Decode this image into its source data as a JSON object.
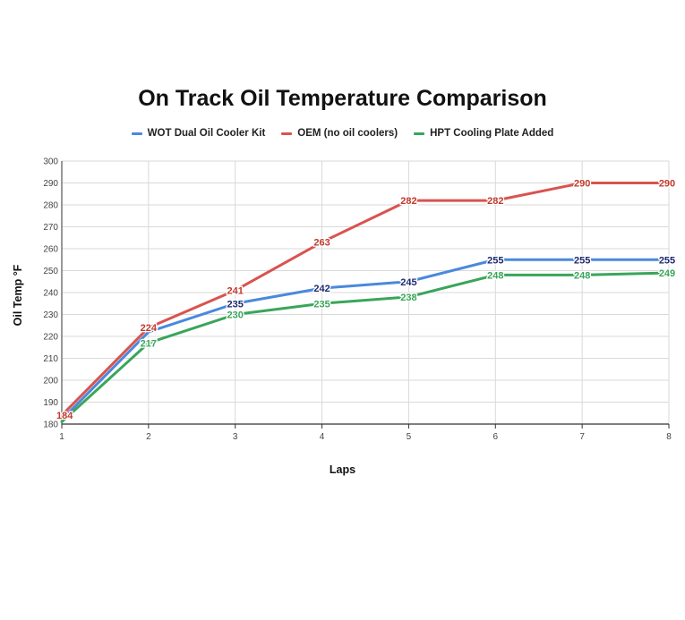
{
  "chart_data": {
    "type": "line",
    "title": "On Track Oil Temperature Comparison",
    "xlabel": "Laps",
    "ylabel": "Oil Temp °F",
    "x": [
      1,
      2,
      3,
      4,
      5,
      6,
      7,
      8
    ],
    "xticks": [
      "1",
      "2",
      "3",
      "4",
      "5",
      "6",
      "7",
      "8"
    ],
    "yticks": [
      "180",
      "190",
      "200",
      "210",
      "220",
      "230",
      "240",
      "250",
      "260",
      "270",
      "280",
      "290",
      "300"
    ],
    "ylim": [
      180,
      300
    ],
    "xlim": [
      1,
      8
    ],
    "grid": true,
    "legend_position": "top",
    "series": [
      {
        "name": "WOT Dual Oil Cooler Kit",
        "color": "#4a89dc",
        "label_color": "#1f2a6e",
        "values": [
          182,
          222,
          235,
          242,
          245,
          255,
          255,
          255
        ],
        "labels": [
          "",
          "",
          "235",
          "242",
          "245",
          "255",
          "255",
          "255"
        ]
      },
      {
        "name": "OEM (no oil coolers)",
        "color": "#d9534f",
        "label_color": "#c0392b",
        "values": [
          184,
          224,
          241,
          263,
          282,
          282,
          290,
          290
        ],
        "labels": [
          "184",
          "224",
          "241",
          "263",
          "282",
          "282",
          "290",
          "290"
        ]
      },
      {
        "name": "HPT Cooling Plate Added",
        "color": "#3aa55a",
        "label_color": "#3aa55a",
        "values": [
          181,
          217,
          230,
          235,
          238,
          248,
          248,
          249
        ],
        "labels": [
          "",
          "217",
          "230",
          "235",
          "238",
          "248",
          "248",
          "249"
        ]
      }
    ]
  }
}
